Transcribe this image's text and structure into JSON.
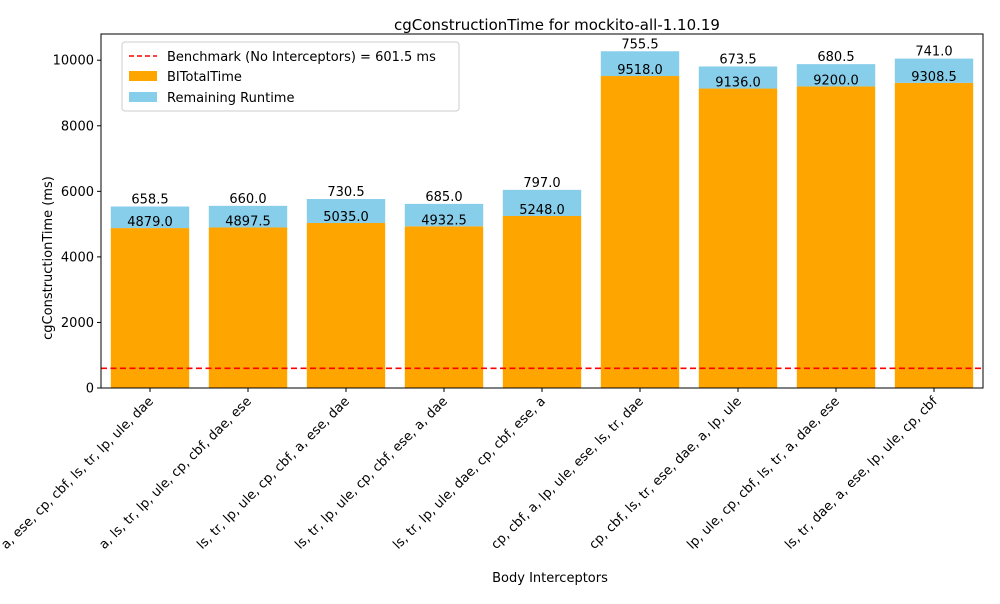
{
  "chart_data": {
    "type": "bar",
    "stacked": true,
    "title": "cgConstructionTime for mockito-all-1.10.19",
    "xlabel": "Body Interceptors",
    "ylabel": "cgConstructionTime (ms)",
    "ylim": [
      0,
      10800
    ],
    "yticks": [
      0,
      2000,
      4000,
      6000,
      8000,
      10000
    ],
    "grid": false,
    "legend_position": "top-left",
    "categories": [
      "a, ese, cp, cbf, ls, tr, lp, ule, dae",
      "a, ls, tr, lp, ule, cp, cbf, dae, ese",
      "ls, tr, lp, ule, cp, cbf, a, ese, dae",
      "ls, tr, lp, ule, cp, cbf, ese, a, dae",
      "ls, tr, lp, ule, dae, cp, cbf, ese, a",
      "cp, cbf, a, lp, ule, ese, ls, tr, dae",
      "cp, cbf, ls, tr, ese, dae, a, lp, ule",
      "lp, ule, cp, cbf, ls, tr, a, dae, ese",
      "ls, tr, dae, a, ese, lp, ule, cp, cbf"
    ],
    "series": [
      {
        "name": "BITotalTime",
        "color": "#ffa500",
        "values": [
          4879.0,
          4897.5,
          5035.0,
          4932.5,
          5248.0,
          9518.0,
          9136.0,
          9200.0,
          9308.5
        ],
        "labels": [
          "4879.0",
          "4897.5",
          "5035.0",
          "4932.5",
          "5248.0",
          "9518.0",
          "9136.0",
          "9200.0",
          "9308.5"
        ]
      },
      {
        "name": "Remaining Runtime",
        "color": "#87ceeb",
        "values": [
          658.5,
          660.0,
          730.5,
          685.0,
          797.0,
          755.5,
          673.5,
          680.5,
          741.0
        ],
        "labels": [
          "658.5",
          "660.0",
          "730.5",
          "685.0",
          "797.0",
          "755.5",
          "673.5",
          "680.5",
          "741.0"
        ]
      }
    ],
    "benchmark": {
      "name": "Benchmark (No Interceptors) = 601.5 ms",
      "value": 601.5,
      "color": "#ff0000"
    }
  }
}
